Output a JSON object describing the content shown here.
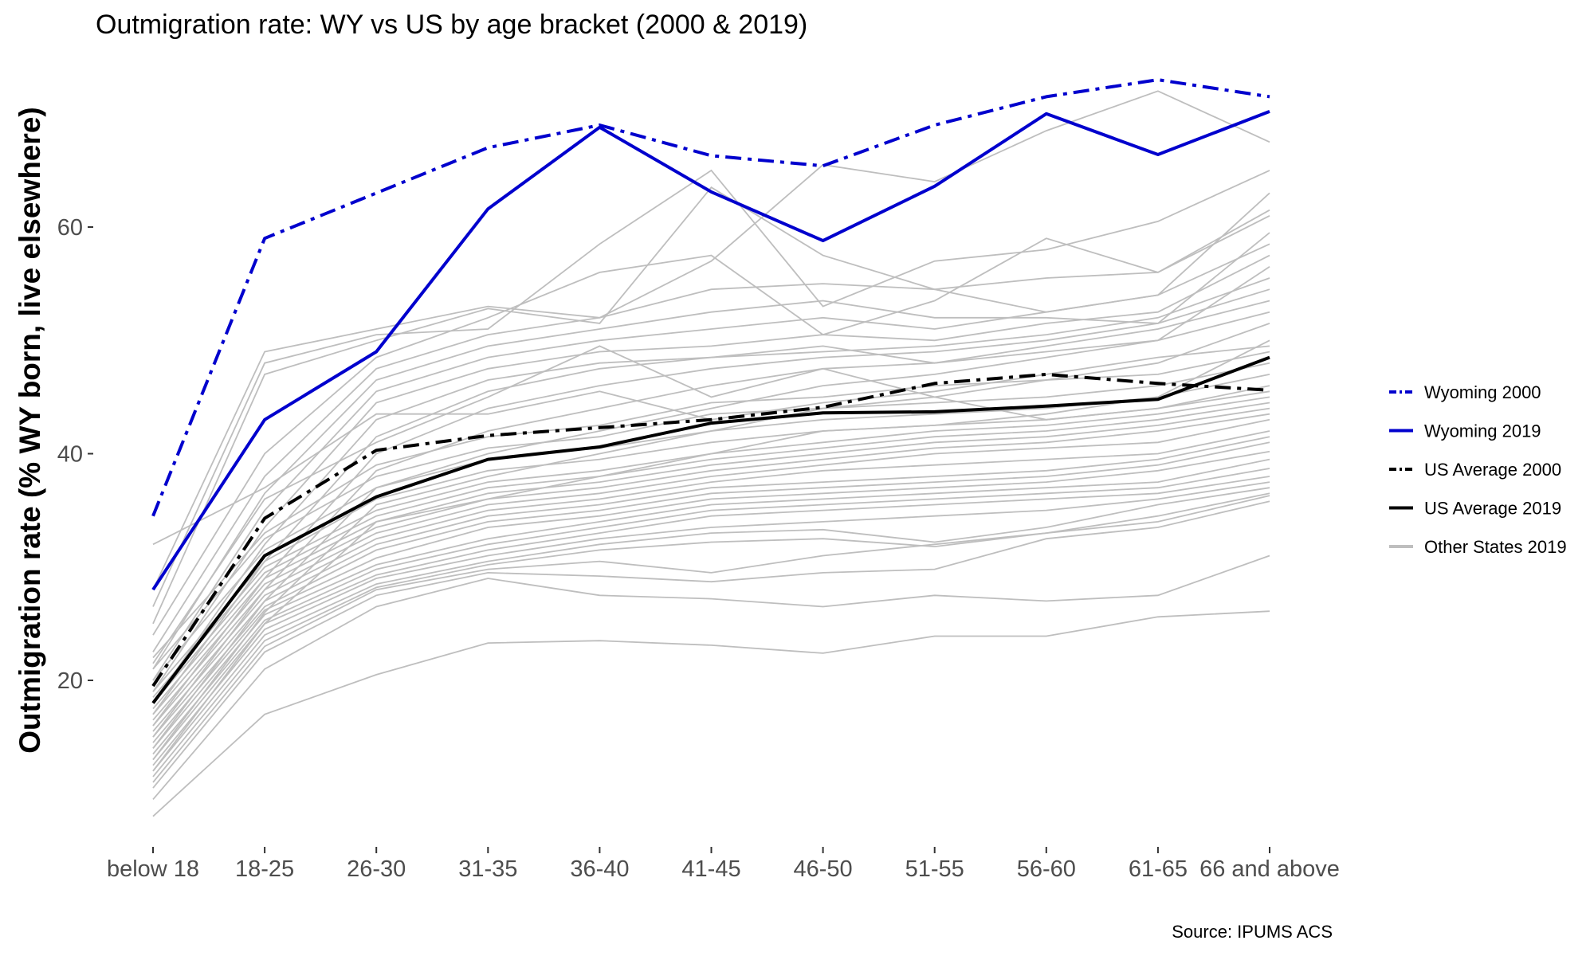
{
  "chart_data": {
    "type": "line",
    "title": "Outmigration rate: WY vs US by age bracket (2000 & 2019)",
    "xlabel": "",
    "ylabel": "Outmigration rate (% WY born, live elsewhere)",
    "caption": "Source: IPUMS ACS",
    "categories": [
      "below 18",
      "18-25",
      "26-30",
      "31-35",
      "36-40",
      "41-45",
      "46-50",
      "51-55",
      "56-60",
      "61-65",
      "66 and above"
    ],
    "y_ticks": [
      20,
      40,
      60
    ],
    "ylim": [
      7,
      75
    ],
    "grid": false,
    "legend_position": "right",
    "series": [
      {
        "name": "Wyoming 2000",
        "color": "#0000cd",
        "dash": "dotdash",
        "values": [
          34.5,
          59,
          63,
          67,
          69,
          66.3,
          65.4,
          69,
          71.5,
          73,
          71.5
        ]
      },
      {
        "name": "Wyoming 2019",
        "color": "#0000cd",
        "dash": "solid",
        "values": [
          28,
          43,
          49,
          61.6,
          68.8,
          63.1,
          58.8,
          63.6,
          70,
          66.4,
          70.2
        ]
      },
      {
        "name": "US Average 2000",
        "color": "#000000",
        "dash": "dotdash",
        "values": [
          19.5,
          34.3,
          40.3,
          41.6,
          42.3,
          43,
          44.1,
          46.2,
          47,
          46.2,
          45.6
        ]
      },
      {
        "name": "US Average 2019",
        "color": "#000000",
        "dash": "solid",
        "values": [
          18,
          31,
          36.2,
          39.5,
          40.6,
          42.7,
          43.6,
          43.7,
          44.2,
          44.8,
          48.5
        ]
      }
    ],
    "other_states": {
      "name": "Other States 2019",
      "color": "#bebebe",
      "lines": [
        [
          8,
          17,
          20.5,
          23.3,
          23.5,
          23.1,
          22.4,
          23.9,
          23.9,
          25.6,
          26.1
        ],
        [
          9.5,
          21,
          26.5,
          29,
          27.5,
          27.2,
          26.5,
          27.5,
          27,
          27.5,
          31
        ],
        [
          10.5,
          22.5,
          27.5,
          29.5,
          29.2,
          28.7,
          29.5,
          29.8,
          32.5,
          33.5,
          35.8
        ],
        [
          11,
          23,
          28,
          29.8,
          30.5,
          29.5,
          31,
          32,
          33,
          34,
          36.3
        ],
        [
          11.5,
          23.5,
          28.2,
          30.2,
          31.5,
          32.2,
          32.5,
          31.8,
          33,
          34.5,
          36.5
        ],
        [
          12,
          24,
          28.5,
          30.5,
          32,
          33,
          33.3,
          32.2,
          33.5,
          35.5,
          37
        ],
        [
          12.5,
          24.5,
          29,
          31,
          32.5,
          33.5,
          34,
          34.5,
          35,
          36,
          37.5
        ],
        [
          13,
          25,
          29.3,
          31.5,
          33,
          34.5,
          35,
          35.5,
          36,
          36.5,
          38
        ],
        [
          13.5,
          25.3,
          29.8,
          32,
          33.5,
          35,
          35.5,
          36,
          36.5,
          37,
          38.7
        ],
        [
          14,
          25.8,
          30.2,
          32.5,
          34,
          35.5,
          36,
          36.5,
          37,
          37.5,
          39.5
        ],
        [
          14.5,
          26.2,
          30.8,
          33.5,
          34.5,
          36,
          36.5,
          37,
          37.5,
          38.5,
          40.2
        ],
        [
          15,
          26.5,
          31.5,
          34,
          35,
          36.5,
          37,
          37.5,
          38,
          39,
          41
        ],
        [
          15.5,
          27,
          32,
          34.5,
          35.5,
          37,
          37.5,
          38,
          38.5,
          39.5,
          41.5
        ],
        [
          16,
          27.5,
          32.5,
          35,
          36,
          37.5,
          38.5,
          39,
          39.5,
          40,
          42
        ],
        [
          16.5,
          28,
          33,
          35.5,
          36.5,
          38,
          39,
          40,
          40.5,
          41,
          43
        ],
        [
          17,
          28.5,
          33.5,
          36,
          37,
          38.5,
          39.5,
          40.5,
          41,
          42,
          43.5
        ],
        [
          17.5,
          29,
          34,
          36.5,
          37.5,
          39,
          40,
          41,
          41.5,
          42.5,
          44
        ],
        [
          18,
          29.5,
          34.5,
          37,
          38,
          39.5,
          40.5,
          41.5,
          42,
          43,
          44.5
        ],
        [
          18.5,
          30,
          35,
          37.5,
          38.5,
          40,
          41,
          42,
          42.5,
          43.5,
          45
        ],
        [
          19,
          30.5,
          36,
          38.5,
          39.5,
          41,
          42,
          42.5,
          43,
          44,
          46
        ],
        [
          20,
          31.5,
          37,
          39.5,
          40.5,
          42,
          43,
          43.5,
          44,
          45,
          47
        ],
        [
          21,
          32.5,
          38,
          40.5,
          41.5,
          43.5,
          44,
          44.5,
          45,
          46,
          48
        ],
        [
          22,
          33,
          39,
          41.5,
          42.5,
          44.5,
          45,
          46,
          46.5,
          47,
          49
        ],
        [
          12,
          25,
          34,
          36,
          38,
          40,
          42,
          42.5,
          43.5,
          45,
          50
        ],
        [
          13,
          26,
          35.5,
          38,
          40,
          42,
          44,
          45,
          46.5,
          48,
          51.5
        ],
        [
          14,
          27,
          37,
          40,
          42,
          44,
          46,
          47,
          48.5,
          50,
          52.5
        ],
        [
          15,
          28,
          38.5,
          42,
          44,
          46,
          47.5,
          48,
          49.5,
          51,
          53.5
        ],
        [
          16,
          29,
          40,
          44,
          46,
          47.5,
          48.5,
          49,
          50,
          51.5,
          54.5
        ],
        [
          17,
          30.5,
          41.5,
          45.5,
          47.5,
          48.5,
          49,
          49.5,
          50.5,
          52,
          55.5
        ],
        [
          18,
          32,
          43,
          46.5,
          48,
          48.5,
          49.5,
          48,
          49,
          50,
          56.5
        ],
        [
          19,
          33.5,
          44.5,
          47.5,
          49,
          49.5,
          50.5,
          50,
          51.5,
          52.5,
          57.5
        ],
        [
          20,
          35,
          45.5,
          48.5,
          50,
          51,
          52,
          51,
          52.5,
          54,
          58.5
        ],
        [
          21,
          36.5,
          46.5,
          49.5,
          51,
          52.5,
          53.5,
          52,
          52,
          51.5,
          59.5
        ],
        [
          22.5,
          38,
          47.5,
          50.5,
          52,
          54.5,
          55,
          54.5,
          55.5,
          56,
          61
        ],
        [
          24,
          40,
          48.5,
          52,
          56,
          57.5,
          50.5,
          53.5,
          59,
          56,
          61.5
        ],
        [
          25,
          47,
          50,
          52.8,
          51.5,
          63.5,
          57.5,
          54.5,
          52.5,
          54,
          63
        ],
        [
          26.5,
          48,
          50.5,
          51,
          58.5,
          65,
          53,
          57,
          58,
          60.5,
          65
        ],
        [
          28,
          49,
          51,
          53,
          52,
          57,
          65.5,
          64,
          68.5,
          72,
          67.5
        ],
        [
          32,
          37,
          43.5,
          43.5,
          45.5,
          43,
          44.5,
          45.5,
          47,
          48.5,
          49.5
        ],
        [
          21.5,
          36,
          41,
          45,
          49.5,
          45,
          47.5,
          45,
          43,
          44,
          45.5
        ]
      ]
    }
  }
}
